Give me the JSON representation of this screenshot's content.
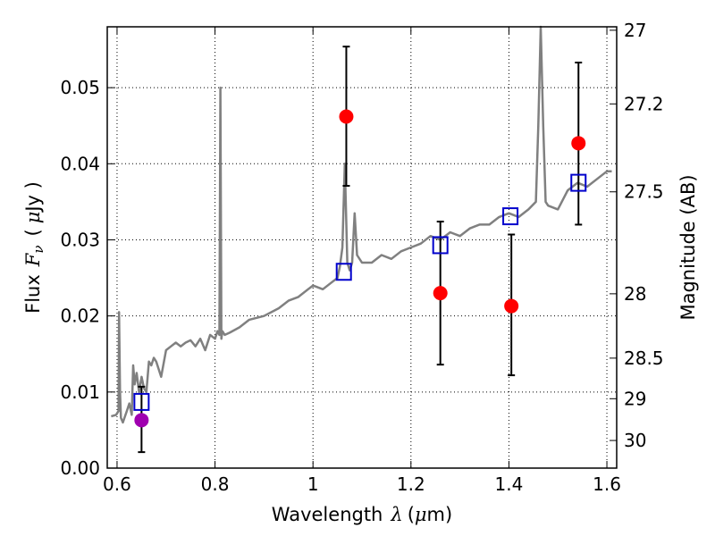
{
  "chart_data": {
    "type": "scatter",
    "x_axis": {
      "label_prefix": "Wavelength",
      "label_symbol": "λ",
      "label_unit_open": "(",
      "label_unit_mu": "μ",
      "label_unit_rest": "m)",
      "range": [
        0.58,
        1.62
      ],
      "ticks": [
        0.6,
        0.8,
        1.0,
        1.2,
        1.4,
        1.6
      ],
      "tick_labels": [
        "0.6",
        "0.8",
        "1",
        "1.2",
        "1.4",
        "1.6"
      ]
    },
    "y_axis": {
      "label_prefix": "Flux",
      "label_symbol": "F",
      "label_subscript": "ν",
      "label_unit_open": "(",
      "label_unit_mu": "μ",
      "label_unit_rest": "Jy )",
      "range": [
        0.0,
        0.058
      ],
      "ticks": [
        0.0,
        0.01,
        0.02,
        0.03,
        0.04,
        0.05
      ],
      "tick_labels": [
        "0.00",
        "0.01",
        "0.02",
        "0.03",
        "0.04",
        "0.05"
      ]
    },
    "y2_axis": {
      "label": "Magnitude (AB)",
      "ticks": [
        27,
        27.2,
        27.5,
        28,
        28.5,
        29,
        30
      ],
      "tick_labels": [
        "27",
        "27.2",
        "27.5",
        "28",
        "28.5",
        "29",
        "30"
      ]
    },
    "grid": true,
    "colors": {
      "spectrum": "#808080",
      "observed": "#ff0000",
      "observed_alt": "#a000b0",
      "model": "#0000cc",
      "errorbar": "#000000"
    },
    "spectrum": {
      "x": [
        0.588,
        0.598,
        0.603,
        0.604,
        0.606,
        0.608,
        0.612,
        0.62,
        0.625,
        0.63,
        0.633,
        0.636,
        0.64,
        0.645,
        0.65,
        0.655,
        0.66,
        0.665,
        0.67,
        0.675,
        0.68,
        0.69,
        0.7,
        0.71,
        0.72,
        0.73,
        0.74,
        0.75,
        0.76,
        0.77,
        0.78,
        0.79,
        0.8,
        0.805,
        0.809,
        0.811,
        0.813,
        0.815,
        0.82,
        0.83,
        0.85,
        0.87,
        0.9,
        0.93,
        0.95,
        0.97,
        0.99,
        1.0,
        1.02,
        1.04,
        1.05,
        1.055,
        1.06,
        1.065,
        1.07,
        1.075,
        1.08,
        1.085,
        1.09,
        1.1,
        1.12,
        1.14,
        1.16,
        1.18,
        1.2,
        1.22,
        1.24,
        1.26,
        1.28,
        1.3,
        1.32,
        1.34,
        1.36,
        1.38,
        1.4,
        1.42,
        1.44,
        1.455,
        1.46,
        1.465,
        1.47,
        1.475,
        1.48,
        1.5,
        1.52,
        1.54,
        1.56,
        1.58,
        1.6,
        1.61
      ],
      "y": [
        0.0068,
        0.007,
        0.0075,
        0.0205,
        0.01,
        0.0066,
        0.006,
        0.0075,
        0.0085,
        0.007,
        0.0135,
        0.011,
        0.0125,
        0.01,
        0.012,
        0.0105,
        0.01,
        0.014,
        0.0135,
        0.0145,
        0.014,
        0.012,
        0.0155,
        0.016,
        0.0165,
        0.016,
        0.0165,
        0.0168,
        0.016,
        0.017,
        0.0155,
        0.0175,
        0.017,
        0.018,
        0.0175,
        0.05,
        0.017,
        0.018,
        0.0175,
        0.0178,
        0.0185,
        0.0195,
        0.02,
        0.021,
        0.022,
        0.0225,
        0.0235,
        0.024,
        0.0235,
        0.0245,
        0.025,
        0.0265,
        0.029,
        0.04,
        0.027,
        0.026,
        0.027,
        0.0335,
        0.028,
        0.027,
        0.027,
        0.028,
        0.0275,
        0.0285,
        0.029,
        0.0295,
        0.0305,
        0.03,
        0.031,
        0.0305,
        0.0315,
        0.032,
        0.032,
        0.033,
        0.0335,
        0.033,
        0.034,
        0.035,
        0.045,
        0.058,
        0.045,
        0.035,
        0.0345,
        0.034,
        0.0365,
        0.0375,
        0.037,
        0.038,
        0.039,
        0.039
      ]
    },
    "observed_points": [
      {
        "x": 0.65,
        "y": 0.0063,
        "err_low": 0.0021,
        "err_high": 0.0107,
        "color": "#a000b0"
      },
      {
        "x": 1.068,
        "y": 0.0462,
        "err_low": 0.0371,
        "err_high": 0.0554,
        "color": "#ff0000"
      },
      {
        "x": 1.26,
        "y": 0.023,
        "err_low": 0.0136,
        "err_high": 0.0324,
        "color": "#ff0000"
      },
      {
        "x": 1.405,
        "y": 0.0213,
        "err_low": 0.0122,
        "err_high": 0.0307,
        "color": "#ff0000"
      },
      {
        "x": 1.542,
        "y": 0.0427,
        "err_low": 0.032,
        "err_high": 0.0533,
        "color": "#ff0000"
      }
    ],
    "model_points": [
      {
        "x": 0.65,
        "y": 0.0087
      },
      {
        "x": 1.063,
        "y": 0.0258
      },
      {
        "x": 1.26,
        "y": 0.0293
      },
      {
        "x": 1.403,
        "y": 0.0331
      },
      {
        "x": 1.542,
        "y": 0.0375
      }
    ]
  }
}
